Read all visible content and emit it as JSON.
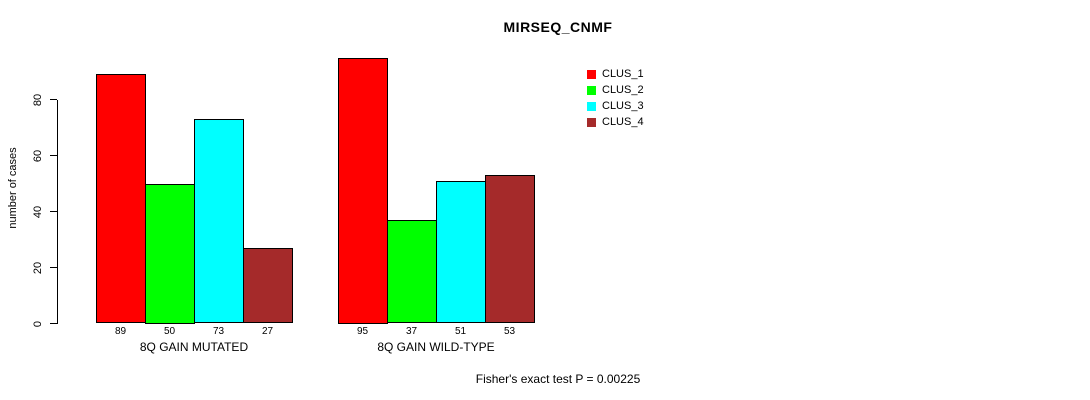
{
  "chart_data": {
    "type": "bar",
    "title": "MIRSEQ_CNMF",
    "ylabel": "number of cases",
    "xlabel": "",
    "annotation": "Fisher's exact test P = 0.00225",
    "categories": [
      "8Q GAIN MUTATED",
      "8Q GAIN WILD-TYPE"
    ],
    "series": [
      {
        "name": "CLUS_1",
        "color": "#ff0000",
        "values": [
          89,
          95
        ]
      },
      {
        "name": "CLUS_2",
        "color": "#00ff00",
        "values": [
          50,
          37
        ]
      },
      {
        "name": "CLUS_3",
        "color": "#00ffff",
        "values": [
          73,
          51
        ]
      },
      {
        "name": "CLUS_4",
        "color": "#a52a2a",
        "values": [
          27,
          53
        ]
      }
    ],
    "value_labels": {
      "group_0": [
        89,
        50,
        73,
        27
      ],
      "group_1": [
        95,
        37,
        51,
        53
      ]
    },
    "yticks": [
      0,
      20,
      40,
      60,
      80
    ],
    "ylim": [
      0,
      96
    ],
    "grid": false,
    "legend_position": "top-right",
    "bar_border_color": "#000000",
    "background_color": "#ffffff"
  }
}
